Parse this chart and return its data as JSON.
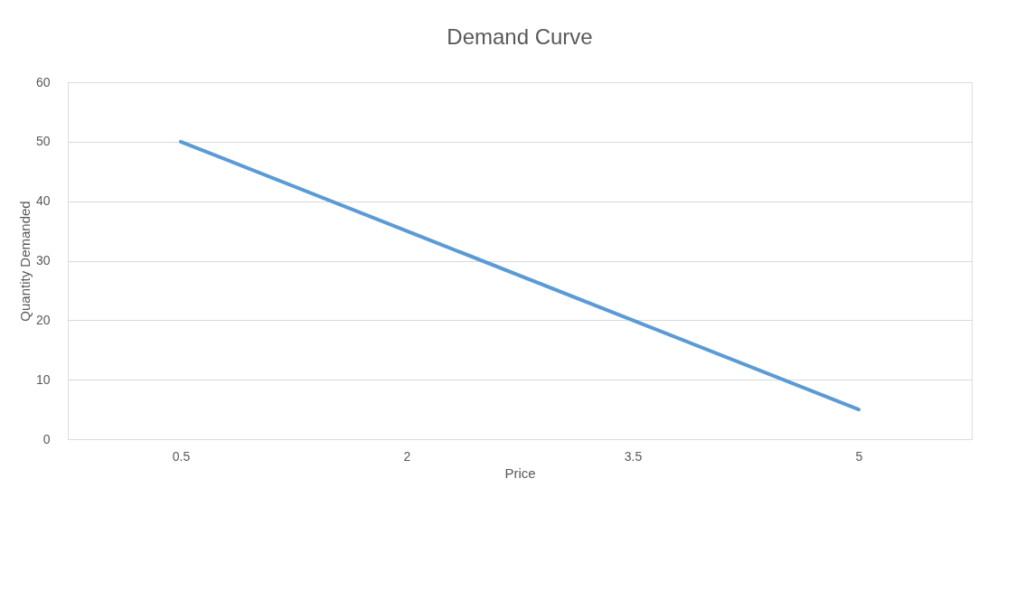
{
  "chart_data": {
    "type": "line",
    "title": "Demand Curve",
    "xlabel": "Price",
    "ylabel": "Quantity Demanded",
    "categories": [
      "0.5",
      "2",
      "3.5",
      "5"
    ],
    "series": [
      {
        "color": "#5b9bd5",
        "values": [
          50,
          35,
          20,
          5
        ]
      }
    ],
    "ylim": [
      0,
      60
    ],
    "yticks": [
      0,
      10,
      20,
      30,
      40,
      50,
      60
    ],
    "grid": "y",
    "legend": false,
    "marker": "none",
    "line_style": "solid"
  }
}
